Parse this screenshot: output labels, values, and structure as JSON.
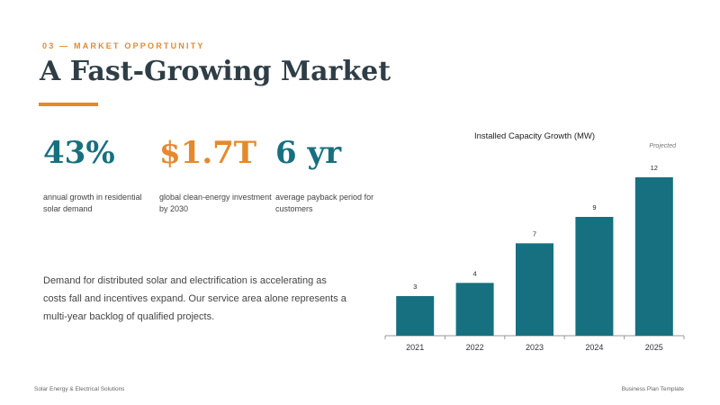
{
  "section": {
    "eyebrow": "03 — MARKET OPPORTUNITY"
  },
  "title": "A Fast-Growing Market",
  "stats": [
    {
      "value": "43%",
      "label": "annual growth in residential solar demand",
      "color": "#17707f"
    },
    {
      "value": "$1.7T",
      "label": "global clean-energy investment by 2030",
      "color": "#e6892b"
    },
    {
      "value": "6 yr",
      "label": "average payback period for customers",
      "color": "#17707f"
    }
  ],
  "body_text": "Demand for distributed solar and electrification is accelerating as costs fall and incentives expand. Our service area alone represents a multi-year backlog of qualified projects.",
  "footer": {
    "left": "Solar Energy & Electrical Solutions",
    "right": "Business Plan Template"
  },
  "colors": {
    "accent": "#e6892b",
    "teal": "#17707f",
    "heading": "#2f3e46"
  },
  "chart_data": {
    "type": "bar",
    "title": "Installed Capacity Growth (MW)",
    "annotation": "Projected",
    "categories": [
      "2021",
      "2022",
      "2023",
      "2024",
      "2025"
    ],
    "values": [
      3,
      4,
      7,
      9,
      12
    ],
    "ylim": [
      0,
      12
    ],
    "grid": false,
    "bar_color": "#17707f"
  }
}
